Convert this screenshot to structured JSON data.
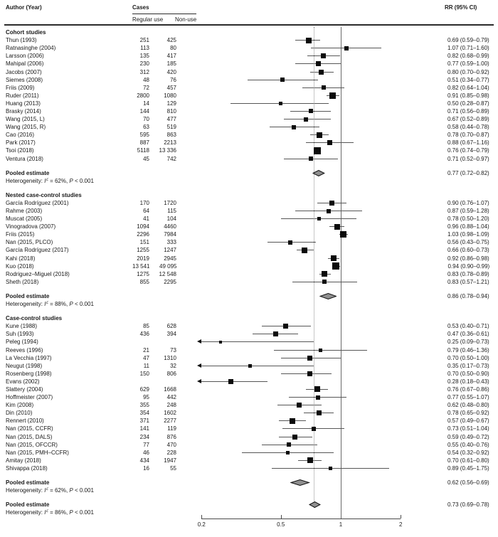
{
  "header": {
    "author_year": "Author (Year)",
    "cases": "Cases",
    "regular_use": "Regular use",
    "non_use": "Non-use",
    "rr_ci": "RR (95% CI)"
  },
  "labels": {
    "pooled": "Pooled estimate",
    "heterogeneity": "Heterogeneity:"
  },
  "chart_data": {
    "type": "forest",
    "x_scale": "log",
    "x_ticks": [
      0.2,
      0.5,
      1,
      2
    ],
    "x_tick_labels": [
      "0.2",
      "0.5",
      "1",
      "2"
    ],
    "x_range": [
      0.2,
      2
    ],
    "ref_line": 1,
    "dotted_line": 0.73,
    "groups": [
      {
        "label": "Cohort studies",
        "studies": [
          {
            "author": "Thun (1993)",
            "regular": "251",
            "nonuse": "425",
            "rr": 0.69,
            "lo": 0.59,
            "hi": 0.79,
            "rr_text": "0.69 (0.59–0.79)",
            "size": 8
          },
          {
            "author": "Ratnasinghe (2004)",
            "regular": "113",
            "nonuse": "80",
            "rr": 1.07,
            "lo": 0.71,
            "hi": 1.6,
            "rr_text": "1.07 (0.71–1.60)",
            "size": 6
          },
          {
            "author": "Larsson (2006)",
            "regular": "135",
            "nonuse": "417",
            "rr": 0.82,
            "lo": 0.68,
            "hi": 0.99,
            "rr_text": "0.82 (0.68–0.99)",
            "size": 7
          },
          {
            "author": "Mahipal (2006)",
            "regular": "230",
            "nonuse": "185",
            "rr": 0.77,
            "lo": 0.59,
            "hi": 1.0,
            "rr_text": "0.77 (0.59–1.00)",
            "size": 7
          },
          {
            "author": "Jacobs (2007)",
            "regular": "312",
            "nonuse": "420",
            "rr": 0.8,
            "lo": 0.7,
            "hi": 0.92,
            "rr_text": "0.80 (0.70–0.92)",
            "size": 7
          },
          {
            "author": "Siemes (2008)",
            "regular": "48",
            "nonuse": "76",
            "rr": 0.51,
            "lo": 0.34,
            "hi": 0.77,
            "rr_text": "0.51 (0.34–0.77)",
            "size": 6
          },
          {
            "author": "Friis (2009)",
            "regular": "72",
            "nonuse": "457",
            "rr": 0.82,
            "lo": 0.64,
            "hi": 1.04,
            "rr_text": "0.82 (0.64–1.04)",
            "size": 6
          },
          {
            "author": "Ruder (2011)",
            "regular": "2800",
            "nonuse": "1080",
            "rr": 0.91,
            "lo": 0.85,
            "hi": 0.98,
            "rr_text": "0.91 (0.85–0.98)",
            "size": 9
          },
          {
            "author": "Huang (2013)",
            "regular": "14",
            "nonuse": "129",
            "rr": 0.5,
            "lo": 0.28,
            "hi": 0.87,
            "rr_text": "0.50 (0.28–0.87)",
            "size": 5
          },
          {
            "author": "Brasky (2014)",
            "regular": "144",
            "nonuse": "810",
            "rr": 0.71,
            "lo": 0.56,
            "hi": 0.89,
            "rr_text": "0.71 (0.56–0.89)",
            "size": 6
          },
          {
            "author": "Wang (2015, L)",
            "regular": "70",
            "nonuse": "477",
            "rr": 0.67,
            "lo": 0.52,
            "hi": 0.89,
            "rr_text": "0.67 (0.52–0.89)",
            "size": 6
          },
          {
            "author": "Wang (2015, R)",
            "regular": "63",
            "nonuse": "519",
            "rr": 0.58,
            "lo": 0.44,
            "hi": 0.78,
            "rr_text": "0.58 (0.44–0.78)",
            "size": 6
          },
          {
            "author": "Cao (2016)",
            "regular": "595",
            "nonuse": "863",
            "rr": 0.78,
            "lo": 0.7,
            "hi": 0.87,
            "rr_text": "0.78 (0.70–0.87)",
            "size": 8
          },
          {
            "author": "Park (2017)",
            "regular": "887",
            "nonuse": "2213",
            "rr": 0.88,
            "lo": 0.67,
            "hi": 1.16,
            "rr_text": "0.88 (0.67–1.16)",
            "size": 7
          },
          {
            "author": "Tsoi (2018)",
            "regular": "5118",
            "nonuse": "13 336",
            "rr": 0.76,
            "lo": 0.74,
            "hi": 0.79,
            "rr_text": "0.76 (0.74–0.79)",
            "size": 10
          },
          {
            "author": "Ventura (2018)",
            "regular": "45",
            "nonuse": "742",
            "rr": 0.71,
            "lo": 0.52,
            "hi": 0.97,
            "rr_text": "0.71 (0.52–0.97)",
            "size": 6
          }
        ],
        "pooled": {
          "rr": 0.77,
          "lo": 0.72,
          "hi": 0.82,
          "rr_text": "0.77 (0.72–0.82)",
          "i2": "62%",
          "p": "< 0.001"
        }
      },
      {
        "label": "Nested case-control studies",
        "studies": [
          {
            "author": "García Rodríguez (2001)",
            "regular": "170",
            "nonuse": "1720",
            "rr": 0.9,
            "lo": 0.76,
            "hi": 1.07,
            "rr_text": "0.90 (0.76–1.07)",
            "size": 7
          },
          {
            "author": "Rahme (2003)",
            "regular": "64",
            "nonuse": "115",
            "rr": 0.87,
            "lo": 0.59,
            "hi": 1.28,
            "rr_text": "0.87 (0.59–1.28)",
            "size": 6
          },
          {
            "author": "Muscat (2005)",
            "regular": "41",
            "nonuse": "104",
            "rr": 0.78,
            "lo": 0.5,
            "hi": 1.2,
            "rr_text": "0.78 (0.50–1.20)",
            "size": 5
          },
          {
            "author": "Vinogradova (2007)",
            "regular": "1094",
            "nonuse": "4460",
            "rr": 0.96,
            "lo": 0.88,
            "hi": 1.04,
            "rr_text": "0.96 (0.88–1.04)",
            "size": 8
          },
          {
            "author": "Friis (2015)",
            "regular": "2296",
            "nonuse": "7984",
            "rr": 1.03,
            "lo": 0.98,
            "hi": 1.09,
            "rr_text": "1.03 (0.98–1.09)",
            "size": 9
          },
          {
            "author": "Nan (2015, PLCO)",
            "regular": "151",
            "nonuse": "333",
            "rr": 0.56,
            "lo": 0.43,
            "hi": 0.75,
            "rr_text": "0.56 (0.43–0.75)",
            "size": 6
          },
          {
            "author": "García Rodríguez (2017)",
            "regular": "1255",
            "nonuse": "1247",
            "rr": 0.66,
            "lo": 0.6,
            "hi": 0.73,
            "rr_text": "0.66 (0.60–0.73)",
            "size": 8
          },
          {
            "author": "Kahi (2018)",
            "regular": "2019",
            "nonuse": "2945",
            "rr": 0.92,
            "lo": 0.86,
            "hi": 0.98,
            "rr_text": "0.92 (0.86–0.98)",
            "size": 8
          },
          {
            "author": "Kuo (2018)",
            "regular": "13 541",
            "nonuse": "49 095",
            "rr": 0.94,
            "lo": 0.9,
            "hi": 0.99,
            "rr_text": "0.94 (0.90–0.99)",
            "size": 10
          },
          {
            "author": "Rodriguez–Miguel (2018)",
            "regular": "1275",
            "nonuse": "12 548",
            "rr": 0.83,
            "lo": 0.78,
            "hi": 0.89,
            "rr_text": "0.83 (0.78–0.89)",
            "size": 8
          },
          {
            "author": "Sheth (2018)",
            "regular": "855",
            "nonuse": "2295",
            "rr": 0.83,
            "lo": 0.57,
            "hi": 1.21,
            "rr_text": "0.83 (0.57–1.21)",
            "size": 6
          }
        ],
        "pooled": {
          "rr": 0.86,
          "lo": 0.78,
          "hi": 0.94,
          "rr_text": "0.86 (0.78–0.94)",
          "i2": "88%",
          "p": "< 0.001"
        }
      },
      {
        "label": "Case-control studies",
        "studies": [
          {
            "author": "Kune (1988)",
            "regular": "85",
            "nonuse": "628",
            "rr": 0.53,
            "lo": 0.4,
            "hi": 0.71,
            "rr_text": "0.53 (0.40–0.71)",
            "size": 7
          },
          {
            "author": "Suh (1993)",
            "regular": "436",
            "nonuse": "394",
            "rr": 0.47,
            "lo": 0.36,
            "hi": 0.61,
            "rr_text": "0.47 (0.36–0.61)",
            "size": 7
          },
          {
            "author": "Peleg (1994)",
            "regular": "",
            "nonuse": "",
            "rr": 0.25,
            "lo": 0.09,
            "hi": 0.73,
            "rr_text": "0.25 (0.09–0.73)",
            "size": 4
          },
          {
            "author": "Reeves (1996)",
            "regular": "21",
            "nonuse": "73",
            "rr": 0.79,
            "lo": 0.46,
            "hi": 1.36,
            "rr_text": "0.79 (0.46–1.36)",
            "size": 5
          },
          {
            "author": "La Vecchia (1997)",
            "regular": "47",
            "nonuse": "1310",
            "rr": 0.7,
            "lo": 0.5,
            "hi": 1.0,
            "rr_text": "0.70 (0.50–1.00)",
            "size": 7
          },
          {
            "author": "Neugut (1998)",
            "regular": "11",
            "nonuse": "32",
            "rr": 0.35,
            "lo": 0.17,
            "hi": 0.73,
            "rr_text": "0.35 (0.17–0.73)",
            "size": 5
          },
          {
            "author": "Rosenberg (1998)",
            "regular": "150",
            "nonuse": "806",
            "rr": 0.7,
            "lo": 0.5,
            "hi": 0.9,
            "rr_text": "0.70 (0.50–0.90)",
            "size": 7
          },
          {
            "author": "Evans (2002)",
            "regular": "",
            "nonuse": "",
            "rr": 0.28,
            "lo": 0.18,
            "hi": 0.43,
            "rr_text": "0.28 (0.18–0.43)",
            "size": 7
          },
          {
            "author": "Slattery (2004)",
            "regular": "629",
            "nonuse": "1668",
            "rr": 0.76,
            "lo": 0.67,
            "hi": 0.86,
            "rr_text": "0.76 (0.67–0.86)",
            "size": 8
          },
          {
            "author": "Hoffmeister (2007)",
            "regular": "95",
            "nonuse": "442",
            "rr": 0.77,
            "lo": 0.55,
            "hi": 1.07,
            "rr_text": "0.77 (0.55–1.07)",
            "size": 6
          },
          {
            "author": "Kim (2008)",
            "regular": "355",
            "nonuse": "248",
            "rr": 0.62,
            "lo": 0.48,
            "hi": 0.8,
            "rr_text": "0.62 (0.48–0.80)",
            "size": 7
          },
          {
            "author": "Din (2010)",
            "regular": "354",
            "nonuse": "1602",
            "rr": 0.78,
            "lo": 0.65,
            "hi": 0.92,
            "rr_text": "0.78 (0.65–0.92)",
            "size": 7
          },
          {
            "author": "Rennert (2010)",
            "regular": "371",
            "nonuse": "2277",
            "rr": 0.57,
            "lo": 0.49,
            "hi": 0.67,
            "rr_text": "0.57 (0.49–0.67)",
            "size": 8
          },
          {
            "author": "Nan (2015, CCFR)",
            "regular": "141",
            "nonuse": "119",
            "rr": 0.73,
            "lo": 0.51,
            "hi": 1.04,
            "rr_text": "0.73 (0.51–1.04)",
            "size": 6
          },
          {
            "author": "Nan (2015, DALS)",
            "regular": "234",
            "nonuse": "876",
            "rr": 0.59,
            "lo": 0.49,
            "hi": 0.72,
            "rr_text": "0.59 (0.49–0.72)",
            "size": 7
          },
          {
            "author": "Nan (2015, OFCCR)",
            "regular": "77",
            "nonuse": "470",
            "rr": 0.55,
            "lo": 0.4,
            "hi": 0.76,
            "rr_text": "0.55 (0.40–0.76)",
            "size": 6
          },
          {
            "author": "Nan (2015, PMH–CCFR)",
            "regular": "46",
            "nonuse": "228",
            "rr": 0.54,
            "lo": 0.32,
            "hi": 0.92,
            "rr_text": "0.54 (0.32–0.92)",
            "size": 5
          },
          {
            "author": "Amitay (2018)",
            "regular": "434",
            "nonuse": "1947",
            "rr": 0.7,
            "lo": 0.61,
            "hi": 0.8,
            "rr_text": "0.70 (0.61–0.80)",
            "size": 8
          },
          {
            "author": "Shivappa (2018)",
            "regular": "16",
            "nonuse": "55",
            "rr": 0.89,
            "lo": 0.45,
            "hi": 1.75,
            "rr_text": "0.89 (0.45–1.75)",
            "size": 5
          }
        ],
        "pooled": {
          "rr": 0.62,
          "lo": 0.56,
          "hi": 0.69,
          "rr_text": "0.62 (0.56–0.69)",
          "i2": "62%",
          "p": "< 0.001"
        }
      }
    ],
    "overall": {
      "rr": 0.73,
      "lo": 0.69,
      "hi": 0.78,
      "rr_text": "0.73 (0.69–0.78)",
      "i2": "86%",
      "p": "< 0.001"
    }
  }
}
